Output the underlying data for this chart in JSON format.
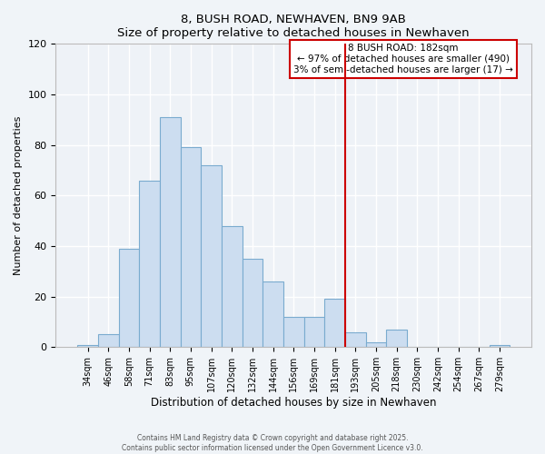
{
  "title": "8, BUSH ROAD, NEWHAVEN, BN9 9AB",
  "subtitle": "Size of property relative to detached houses in Newhaven",
  "xlabel": "Distribution of detached houses by size in Newhaven",
  "ylabel": "Number of detached properties",
  "bar_labels": [
    "34sqm",
    "46sqm",
    "58sqm",
    "71sqm",
    "83sqm",
    "95sqm",
    "107sqm",
    "120sqm",
    "132sqm",
    "144sqm",
    "156sqm",
    "169sqm",
    "181sqm",
    "193sqm",
    "205sqm",
    "218sqm",
    "230sqm",
    "242sqm",
    "254sqm",
    "267sqm",
    "279sqm"
  ],
  "bar_values": [
    1,
    5,
    39,
    66,
    91,
    79,
    72,
    48,
    35,
    26,
    12,
    12,
    19,
    6,
    2,
    7,
    0,
    0,
    0,
    0,
    1
  ],
  "bar_color": "#ccddf0",
  "bar_edge_color": "#7aabcf",
  "vline_x_idx": 12,
  "vline_color": "#cc0000",
  "ylim": [
    0,
    120
  ],
  "yticks": [
    0,
    20,
    40,
    60,
    80,
    100,
    120
  ],
  "annotation_title": "8 BUSH ROAD: 182sqm",
  "annotation_line1": "← 97% of detached houses are smaller (490)",
  "annotation_line2": "3% of semi-detached houses are larger (17) →",
  "footer1": "Contains HM Land Registry data © Crown copyright and database right 2025.",
  "footer2": "Contains public sector information licensed under the Open Government Licence v3.0.",
  "bg_color": "#f0f4f8",
  "plot_bg_color": "#eef2f7",
  "grid_color": "#ffffff"
}
